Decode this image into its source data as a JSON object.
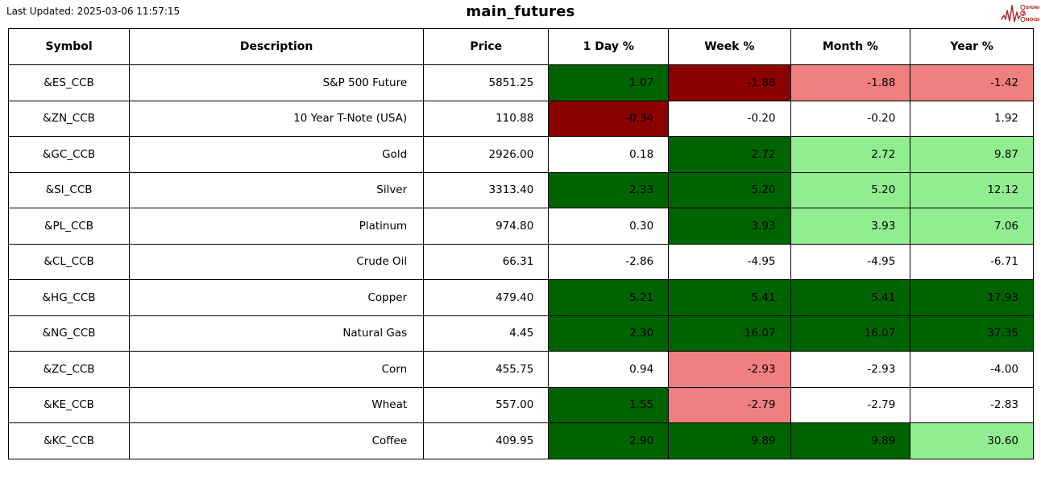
{
  "header": {
    "last_updated": "Last Updated: 2025-03-06 11:57:15",
    "title": "main_futures",
    "logo": {
      "lines": [
        "SIGNAL",
        "2",
        "NOISE"
      ],
      "color": "#b51f1f"
    }
  },
  "table": {
    "columns": [
      "Symbol",
      "Description",
      "Price",
      "1 Day %",
      "Week %",
      "Month %",
      "Year %"
    ],
    "palette": {
      "strong_up": "#006400",
      "up": "#90ee90",
      "strong_down": "#8b0000",
      "down": "#f08080",
      "neutral": "#ffffff"
    },
    "rows": [
      {
        "symbol": "&ES_CCB",
        "description": "S&P 500 Future",
        "price": "5851.25",
        "pcts": [
          "1.07",
          "-1.88",
          "-1.88",
          "-1.42"
        ],
        "pct_colors": [
          "strong_up",
          "strong_down",
          "down",
          "down"
        ]
      },
      {
        "symbol": "&ZN_CCB",
        "description": "10 Year T-Note (USA)",
        "price": "110.88",
        "pcts": [
          "-0.34",
          "-0.20",
          "-0.20",
          "1.92"
        ],
        "pct_colors": [
          "strong_down",
          "neutral",
          "neutral",
          "neutral"
        ]
      },
      {
        "symbol": "&GC_CCB",
        "description": "Gold",
        "price": "2926.00",
        "pcts": [
          "0.18",
          "2.72",
          "2.72",
          "9.87"
        ],
        "pct_colors": [
          "neutral",
          "strong_up",
          "up",
          "up"
        ]
      },
      {
        "symbol": "&SI_CCB",
        "description": "Silver",
        "price": "3313.40",
        "pcts": [
          "2.33",
          "5.20",
          "5.20",
          "12.12"
        ],
        "pct_colors": [
          "strong_up",
          "strong_up",
          "up",
          "up"
        ]
      },
      {
        "symbol": "&PL_CCB",
        "description": "Platinum",
        "price": "974.80",
        "pcts": [
          "0.30",
          "3.93",
          "3.93",
          "7.06"
        ],
        "pct_colors": [
          "neutral",
          "strong_up",
          "up",
          "up"
        ]
      },
      {
        "symbol": "&CL_CCB",
        "description": "Crude Oil",
        "price": "66.31",
        "pcts": [
          "-2.86",
          "-4.95",
          "-4.95",
          "-6.71"
        ],
        "pct_colors": [
          "neutral",
          "neutral",
          "neutral",
          "neutral"
        ]
      },
      {
        "symbol": "&HG_CCB",
        "description": "Copper",
        "price": "479.40",
        "pcts": [
          "5.21",
          "5.41",
          "5.41",
          "17.93"
        ],
        "pct_colors": [
          "strong_up",
          "strong_up",
          "strong_up",
          "strong_up"
        ]
      },
      {
        "symbol": "&NG_CCB",
        "description": "Natural Gas",
        "price": "4.45",
        "pcts": [
          "2.30",
          "16.07",
          "16.07",
          "37.35"
        ],
        "pct_colors": [
          "strong_up",
          "strong_up",
          "strong_up",
          "strong_up"
        ]
      },
      {
        "symbol": "&ZC_CCB",
        "description": "Corn",
        "price": "455.75",
        "pcts": [
          "0.94",
          "-2.93",
          "-2.93",
          "-4.00"
        ],
        "pct_colors": [
          "neutral",
          "down",
          "neutral",
          "neutral"
        ]
      },
      {
        "symbol": "&KE_CCB",
        "description": "Wheat",
        "price": "557.00",
        "pcts": [
          "1.55",
          "-2.79",
          "-2.79",
          "-2.83"
        ],
        "pct_colors": [
          "strong_up",
          "down",
          "neutral",
          "neutral"
        ]
      },
      {
        "symbol": "&KC_CCB",
        "description": "Coffee",
        "price": "409.95",
        "pcts": [
          "2.90",
          "9.89",
          "9.89",
          "30.60"
        ],
        "pct_colors": [
          "strong_up",
          "strong_up",
          "strong_up",
          "up"
        ]
      }
    ]
  }
}
